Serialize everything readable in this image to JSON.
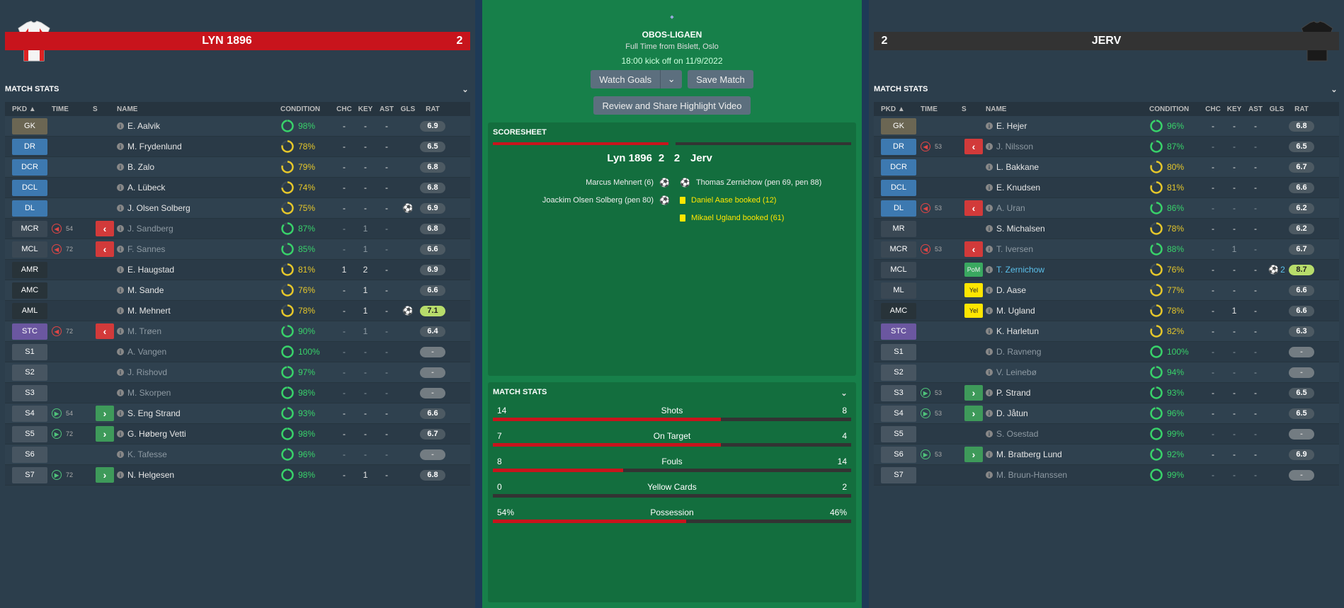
{
  "home": {
    "name": "LYN 1896",
    "score": "2"
  },
  "away": {
    "name": "JERV",
    "score": "2"
  },
  "colors": {
    "home": "#c8141c",
    "away": "#333333"
  },
  "headers": {
    "pkd": "PKD",
    "time": "TIME",
    "s": "S",
    "name": "NAME",
    "condition": "CONDITION",
    "chc": "CHC",
    "key": "KEY",
    "ast": "AST",
    "gls": "GLS",
    "rat": "RAT"
  },
  "stats_title": "MATCH STATS",
  "home_players": [
    {
      "pos": "GK",
      "cls": "gk",
      "name": "E. Aalvik",
      "cond": 98,
      "chc": "-",
      "key": "-",
      "ast": "-",
      "gls": "",
      "rat": "6.9",
      "rc": ""
    },
    {
      "pos": "DR",
      "cls": "def",
      "name": "M. Frydenlund",
      "cond": 78,
      "chc": "-",
      "key": "-",
      "ast": "-",
      "gls": "",
      "rat": "6.5",
      "rc": ""
    },
    {
      "pos": "DCR",
      "cls": "def",
      "name": "B. Zalo",
      "cond": 79,
      "chc": "-",
      "key": "-",
      "ast": "-",
      "gls": "",
      "rat": "6.8",
      "rc": ""
    },
    {
      "pos": "DCL",
      "cls": "def",
      "name": "A. Lübeck",
      "cond": 74,
      "chc": "-",
      "key": "-",
      "ast": "-",
      "gls": "",
      "rat": "6.8",
      "rc": ""
    },
    {
      "pos": "DL",
      "cls": "def",
      "name": "J. Olsen Solberg",
      "cond": 75,
      "chc": "-",
      "key": "-",
      "ast": "-",
      "gls": "ball",
      "rat": "6.9",
      "rc": ""
    },
    {
      "pos": "MCR",
      "cls": "mid",
      "sub": "out",
      "mins": "54",
      "name": "J. Sandberg",
      "dim": true,
      "cond": 87,
      "chc": "-",
      "key": "1",
      "ast": "-",
      "gls": "",
      "rat": "6.8",
      "rc": ""
    },
    {
      "pos": "MCL",
      "cls": "mid",
      "sub": "out",
      "mins": "72",
      "name": "F. Sannes",
      "dim": true,
      "cond": 85,
      "chc": "-",
      "key": "1",
      "ast": "-",
      "gls": "",
      "rat": "6.6",
      "rc": ""
    },
    {
      "pos": "AMR",
      "cls": "am",
      "name": "E. Haugstad",
      "cond": 81,
      "chc": "1",
      "key": "2",
      "ast": "-",
      "gls": "",
      "rat": "6.9",
      "rc": ""
    },
    {
      "pos": "AMC",
      "cls": "am",
      "name": "M. Sande",
      "cond": 76,
      "chc": "-",
      "key": "1",
      "ast": "-",
      "gls": "",
      "rat": "6.6",
      "rc": ""
    },
    {
      "pos": "AML",
      "cls": "am",
      "name": "M. Mehnert",
      "cond": 78,
      "chc": "-",
      "key": "1",
      "ast": "-",
      "gls": "ball",
      "rat": "7.1",
      "rc": "best"
    },
    {
      "pos": "STC",
      "cls": "str",
      "sub": "out",
      "mins": "72",
      "name": "M. Trøen",
      "dim": true,
      "cond": 90,
      "chc": "-",
      "key": "1",
      "ast": "-",
      "gls": "",
      "rat": "6.4",
      "rc": ""
    },
    {
      "pos": "S1",
      "cls": "sub",
      "name": "A. Vangen",
      "dim": true,
      "cond": 100,
      "chc": "-",
      "key": "-",
      "ast": "-",
      "gls": "",
      "rat": "-",
      "rc": "na"
    },
    {
      "pos": "S2",
      "cls": "sub",
      "name": "J. Rishovd",
      "dim": true,
      "cond": 97,
      "chc": "-",
      "key": "-",
      "ast": "-",
      "gls": "",
      "rat": "-",
      "rc": "na"
    },
    {
      "pos": "S3",
      "cls": "sub",
      "name": "M. Skorpen",
      "dim": true,
      "cond": 98,
      "chc": "-",
      "key": "-",
      "ast": "-",
      "gls": "",
      "rat": "-",
      "rc": "na"
    },
    {
      "pos": "S4",
      "cls": "sub",
      "sub": "in",
      "mins": "54",
      "name": "S. Eng Strand",
      "cond": 93,
      "chc": "-",
      "key": "-",
      "ast": "-",
      "gls": "",
      "rat": "6.6",
      "rc": ""
    },
    {
      "pos": "S5",
      "cls": "sub",
      "sub": "in",
      "mins": "72",
      "name": "G. Høberg Vetti",
      "cond": 98,
      "chc": "-",
      "key": "-",
      "ast": "-",
      "gls": "",
      "rat": "6.7",
      "rc": ""
    },
    {
      "pos": "S6",
      "cls": "sub",
      "name": "K. Tafesse",
      "dim": true,
      "cond": 96,
      "chc": "-",
      "key": "-",
      "ast": "-",
      "gls": "",
      "rat": "-",
      "rc": "na"
    },
    {
      "pos": "S7",
      "cls": "sub",
      "sub": "in",
      "mins": "72",
      "name": "N. Helgesen",
      "cond": 98,
      "chc": "-",
      "key": "1",
      "ast": "-",
      "gls": "",
      "rat": "6.8",
      "rc": ""
    }
  ],
  "away_players": [
    {
      "pos": "GK",
      "cls": "gk",
      "name": "E. Hejer",
      "cond": 96,
      "chc": "-",
      "key": "-",
      "ast": "-",
      "gls": "",
      "rat": "6.8",
      "rc": ""
    },
    {
      "pos": "DR",
      "cls": "def",
      "sub": "out",
      "mins": "53",
      "name": "J. Nilsson",
      "dim": true,
      "cond": 87,
      "chc": "-",
      "key": "-",
      "ast": "-",
      "gls": "",
      "rat": "6.5",
      "rc": ""
    },
    {
      "pos": "DCR",
      "cls": "def",
      "name": "L. Bakkane",
      "cond": 80,
      "chc": "-",
      "key": "-",
      "ast": "-",
      "gls": "",
      "rat": "6.7",
      "rc": ""
    },
    {
      "pos": "DCL",
      "cls": "def",
      "name": "E. Knudsen",
      "cond": 81,
      "chc": "-",
      "key": "-",
      "ast": "-",
      "gls": "",
      "rat": "6.6",
      "rc": ""
    },
    {
      "pos": "DL",
      "cls": "def",
      "sub": "out",
      "mins": "53",
      "name": "A. Uran",
      "dim": true,
      "cond": 86,
      "chc": "-",
      "key": "-",
      "ast": "-",
      "gls": "",
      "rat": "6.2",
      "rc": ""
    },
    {
      "pos": "MR",
      "cls": "mid",
      "name": "S. Michalsen",
      "cond": 78,
      "chc": "-",
      "key": "-",
      "ast": "-",
      "gls": "",
      "rat": "6.2",
      "rc": ""
    },
    {
      "pos": "MCR",
      "cls": "mid",
      "sub": "out",
      "mins": "53",
      "name": "T. Iversen",
      "dim": true,
      "cond": 88,
      "chc": "-",
      "key": "1",
      "ast": "-",
      "gls": "",
      "rat": "6.7",
      "rc": ""
    },
    {
      "pos": "MCL",
      "cls": "mid",
      "badge": "PoM",
      "name": "T. Zernichow",
      "hl": true,
      "cond": 76,
      "chc": "-",
      "key": "-",
      "ast": "-",
      "gls": "ball2",
      "gls_n": "2",
      "rat": "8.7",
      "rc": "best"
    },
    {
      "pos": "ML",
      "cls": "mid",
      "badge": "Yel",
      "name": "D. Aase",
      "cond": 77,
      "chc": "-",
      "key": "-",
      "ast": "-",
      "gls": "",
      "rat": "6.6",
      "rc": ""
    },
    {
      "pos": "AMC",
      "cls": "am",
      "badge": "Yel",
      "name": "M. Ugland",
      "cond": 78,
      "chc": "-",
      "key": "1",
      "ast": "-",
      "gls": "",
      "rat": "6.6",
      "rc": ""
    },
    {
      "pos": "STC",
      "cls": "str",
      "name": "K. Harletun",
      "cond": 82,
      "chc": "-",
      "key": "-",
      "ast": "-",
      "gls": "",
      "rat": "6.3",
      "rc": ""
    },
    {
      "pos": "S1",
      "cls": "sub",
      "name": "D. Ravneng",
      "dim": true,
      "cond": 100,
      "chc": "-",
      "key": "-",
      "ast": "-",
      "gls": "",
      "rat": "-",
      "rc": "na"
    },
    {
      "pos": "S2",
      "cls": "sub",
      "name": "V. Leinebø",
      "dim": true,
      "cond": 94,
      "chc": "-",
      "key": "-",
      "ast": "-",
      "gls": "",
      "rat": "-",
      "rc": "na"
    },
    {
      "pos": "S3",
      "cls": "sub",
      "sub": "in",
      "mins": "53",
      "name": "P. Strand",
      "cond": 93,
      "chc": "-",
      "key": "-",
      "ast": "-",
      "gls": "",
      "rat": "6.5",
      "rc": ""
    },
    {
      "pos": "S4",
      "cls": "sub",
      "sub": "in",
      "mins": "53",
      "name": "D. Jåtun",
      "cond": 96,
      "chc": "-",
      "key": "-",
      "ast": "-",
      "gls": "",
      "rat": "6.5",
      "rc": ""
    },
    {
      "pos": "S5",
      "cls": "sub",
      "name": "S. Osestad",
      "dim": true,
      "cond": 99,
      "chc": "-",
      "key": "-",
      "ast": "-",
      "gls": "",
      "rat": "-",
      "rc": "na"
    },
    {
      "pos": "S6",
      "cls": "sub",
      "sub": "in",
      "mins": "53",
      "name": "M. Bratberg Lund",
      "cond": 92,
      "chc": "-",
      "key": "-",
      "ast": "-",
      "gls": "",
      "rat": "6.9",
      "rc": ""
    },
    {
      "pos": "S7",
      "cls": "sub",
      "name": "M. Bruun-Hanssen",
      "dim": true,
      "cond": 99,
      "chc": "-",
      "key": "-",
      "ast": "-",
      "gls": "",
      "rat": "-",
      "rc": "na"
    }
  ],
  "center": {
    "competition": "OBOS-LIGAEN",
    "full_time": "Full Time from Bislett, Oslo",
    "kickoff": "18:00 kick off on 11/9/2022",
    "watch_goals": "Watch Goals",
    "save_match": "Save Match",
    "review_share": "Review and Share Highlight Video",
    "scoresheet_title": "SCORESHEET",
    "home_short": "Lyn 1896",
    "away_short": "Jerv",
    "home_goals": "2",
    "away_goals": "2",
    "home_events": [
      "Marcus Mehnert (6)",
      "Joackim Olsen Solberg (pen 80)"
    ],
    "away_events": [
      {
        "text": "Thomas Zernichow (pen 69, pen 88)",
        "type": "goal"
      },
      {
        "text": "Daniel Aase booked (12)",
        "type": "yellow"
      },
      {
        "text": "Mikael Ugland booked (61)",
        "type": "yellow"
      }
    ],
    "match_stats_title": "MATCH STATS",
    "stats": [
      {
        "label": "Shots",
        "home": "14",
        "away": "8",
        "home_share": 0.636
      },
      {
        "label": "On Target",
        "home": "7",
        "away": "4",
        "home_share": 0.636
      },
      {
        "label": "Fouls",
        "home": "8",
        "away": "14",
        "home_share": 0.364
      },
      {
        "label": "Yellow Cards",
        "home": "0",
        "away": "2",
        "home_share": 0.0
      },
      {
        "label": "Possession",
        "home": "54%",
        "away": "46%",
        "home_share": 0.54
      }
    ]
  }
}
